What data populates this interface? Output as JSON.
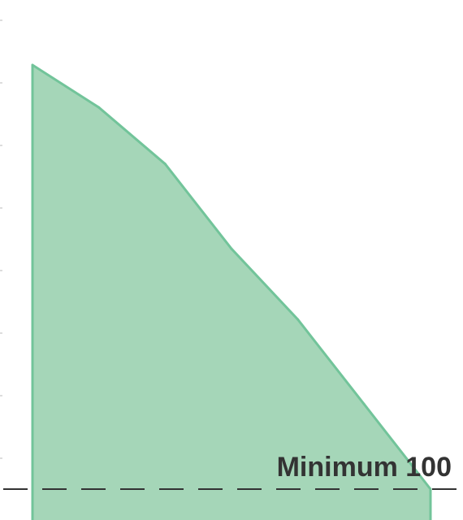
{
  "chart_data": {
    "type": "area",
    "title": "",
    "xlabel": "",
    "ylabel": "",
    "x": [
      1,
      2,
      3,
      4,
      5,
      6,
      7
    ],
    "series": [
      {
        "values": [
          400,
          370,
          330,
          270,
          220,
          160,
          100
        ],
        "color": "#a5d6b8",
        "line_color": "#72c49a"
      }
    ],
    "ylim": [
      80,
      440
    ],
    "xlim": [
      1,
      7
    ],
    "grid": false,
    "reference_line": {
      "value": 100,
      "label": "Minimum 100",
      "style": "dashed",
      "color": "#333333"
    }
  }
}
